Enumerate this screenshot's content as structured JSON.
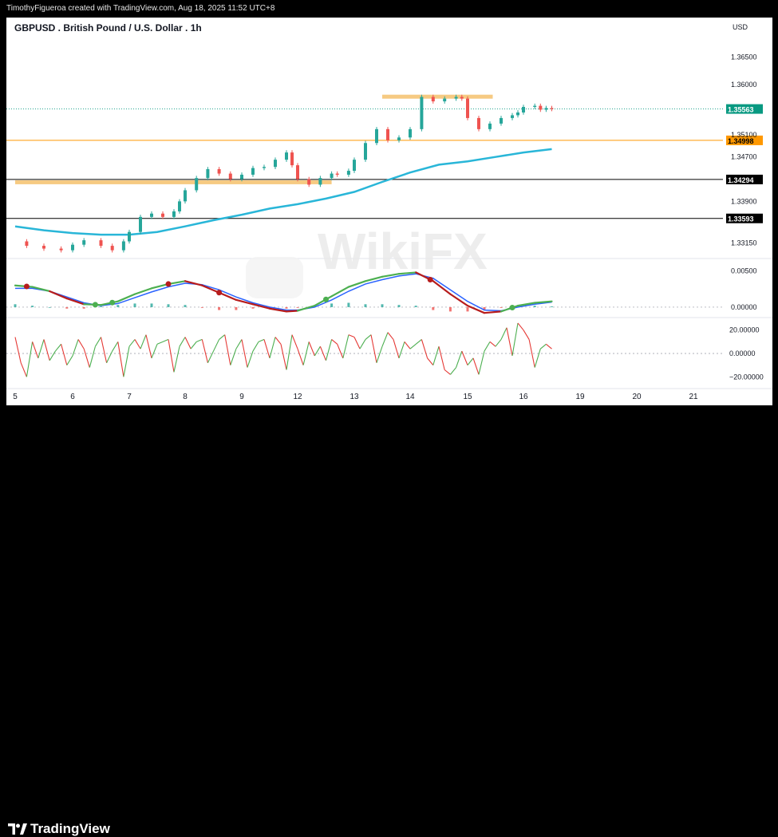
{
  "header": {
    "attribution": "TimothyFigueroa created with TradingView.com, Aug 18, 2025 11:52 UTC+8"
  },
  "footer": {
    "brand": "TradingView"
  },
  "watermark": {
    "text": "WikiFX"
  },
  "colors": {
    "up": "#26a69a",
    "down": "#ef5350",
    "ema": "#29b6d8",
    "zone": "#f5c16c",
    "macd_fast": "#4caf50",
    "macd_slow": "#2962ff",
    "macd_signal_down": "#b71c1c",
    "osc_up": "#4caf50",
    "osc_down": "#e53935",
    "last_price": "#089981",
    "level_orange": "#ff9800",
    "level_black": "#000000"
  },
  "chart_data": {
    "type": "candlestick",
    "title": "GBPUSD . British Pound / U.S. Dollar . 1h",
    "currency": "USD",
    "x_ticks": [
      "5",
      "6",
      "7",
      "8",
      "9",
      "12",
      "13",
      "14",
      "15",
      "16",
      "19",
      "20",
      "21"
    ],
    "y_ticks": [
      "1.36500",
      "1.36000",
      "1.35100",
      "1.34700",
      "1.33900",
      "1.33150"
    ],
    "ylim": [
      1.329,
      1.3695
    ],
    "price_series": {
      "name": "GBPUSD 1h close (approx.)",
      "x": [
        5.0,
        5.2,
        5.5,
        5.8,
        6.0,
        6.2,
        6.5,
        6.7,
        6.9,
        7.0,
        7.2,
        7.4,
        7.6,
        7.8,
        7.9,
        8.0,
        8.2,
        8.4,
        8.6,
        8.8,
        9.0,
        9.2,
        9.4,
        9.6,
        9.8,
        9.9,
        12.0,
        12.2,
        12.4,
        12.6,
        12.7,
        12.9,
        13.0,
        13.2,
        13.4,
        13.6,
        13.8,
        14.0,
        14.2,
        14.4,
        14.6,
        14.8,
        14.9,
        15.0,
        15.2,
        15.4,
        15.6,
        15.8,
        15.9,
        16.0,
        16.2,
        16.3,
        16.4,
        16.5
      ],
      "close": [
        1.3318,
        1.331,
        1.3305,
        1.3302,
        1.3312,
        1.332,
        1.331,
        1.3302,
        1.3318,
        1.3335,
        1.3362,
        1.3368,
        1.3362,
        1.3372,
        1.339,
        1.341,
        1.3432,
        1.3448,
        1.344,
        1.343,
        1.3438,
        1.345,
        1.3452,
        1.3465,
        1.3478,
        1.3455,
        1.343,
        1.342,
        1.3432,
        1.344,
        1.3438,
        1.3445,
        1.3465,
        1.3495,
        1.352,
        1.35,
        1.3505,
        1.352,
        1.3578,
        1.357,
        1.3575,
        1.3578,
        1.3575,
        1.354,
        1.352,
        1.353,
        1.354,
        1.3545,
        1.355,
        1.356,
        1.3562,
        1.3555,
        1.3558,
        1.35563
      ]
    },
    "ema_series": {
      "x": [
        5.0,
        5.5,
        6.0,
        6.5,
        7.0,
        7.5,
        8.0,
        8.5,
        9.0,
        9.5,
        12.0,
        12.5,
        13.0,
        13.5,
        14.0,
        14.5,
        15.0,
        15.5,
        16.0,
        16.5
      ],
      "y": [
        1.3345,
        1.3338,
        1.3333,
        1.333,
        1.333,
        1.3335,
        1.3345,
        1.3356,
        1.3366,
        1.3377,
        1.3385,
        1.3395,
        1.3407,
        1.3425,
        1.3442,
        1.3456,
        1.3462,
        1.347,
        1.3478,
        1.3484
      ]
    },
    "horizontal_levels": [
      {
        "label": "1.34998",
        "value": 1.34998,
        "color": "#ff9800"
      },
      {
        "label": "1.34294",
        "value": 1.34294,
        "color": "#000000"
      },
      {
        "label": "1.33593",
        "value": 1.33593,
        "color": "#000000"
      }
    ],
    "zones": [
      {
        "x0": 13.5,
        "x1": 15.45,
        "y0": 1.3575,
        "y1": 1.3582
      },
      {
        "x0": 5.0,
        "x1": 12.6,
        "y0": 1.3422,
        "y1": 1.3428
      }
    ],
    "last_price": {
      "label": "1.35563",
      "value": 1.35563
    },
    "macd": {
      "y_ticks": [
        "0.00500",
        "0.00000"
      ],
      "ylim": [
        -0.001,
        0.0065
      ],
      "x": [
        5.0,
        5.3,
        5.6,
        5.9,
        6.2,
        6.5,
        6.8,
        7.1,
        7.4,
        7.7,
        8.0,
        8.3,
        8.6,
        8.9,
        9.2,
        9.5,
        9.8,
        12.0,
        12.3,
        12.6,
        12.9,
        13.2,
        13.5,
        13.8,
        14.1,
        14.4,
        14.7,
        15.0,
        15.3,
        15.6,
        15.9,
        16.2,
        16.5
      ],
      "fast": [
        0.003,
        0.0028,
        0.0022,
        0.0012,
        0.0004,
        0.0003,
        0.0008,
        0.0018,
        0.0026,
        0.0032,
        0.0036,
        0.003,
        0.002,
        0.001,
        0.0004,
        -0.0002,
        -0.0006,
        -0.0005,
        0.0002,
        0.0015,
        0.0028,
        0.0036,
        0.0042,
        0.0046,
        0.0048,
        0.0036,
        0.0018,
        0.0002,
        -0.0008,
        -0.0006,
        0.0002,
        0.0006,
        0.0008
      ],
      "slow": [
        0.0026,
        0.0026,
        0.0022,
        0.0014,
        0.0006,
        0.0002,
        0.0005,
        0.0013,
        0.0021,
        0.0028,
        0.0033,
        0.0031,
        0.0024,
        0.0014,
        0.0006,
        0.0,
        -0.0004,
        -0.0004,
        0.0,
        0.001,
        0.0022,
        0.0032,
        0.0038,
        0.0043,
        0.0046,
        0.004,
        0.0024,
        0.0008,
        -0.0004,
        -0.0005,
        0.0,
        0.0004,
        0.0007
      ],
      "histogram": [
        0.0004,
        0.0002,
        0.0,
        -0.0002,
        -0.0002,
        0.0001,
        0.0003,
        0.0005,
        0.0005,
        0.0004,
        0.0003,
        -0.0001,
        -0.0004,
        -0.0004,
        -0.0002,
        -0.0002,
        -0.0002,
        -0.0001,
        0.0002,
        0.0005,
        0.0006,
        0.0004,
        0.0004,
        0.0003,
        0.0002,
        -0.0004,
        -0.0006,
        -0.0006,
        -0.0004,
        -0.0001,
        0.0002,
        0.0002,
        0.0001
      ],
      "cross_points": [
        {
          "x": 5.2,
          "color": "#b71c1c"
        },
        {
          "x": 6.4,
          "color": "#4caf50"
        },
        {
          "x": 6.7,
          "color": "#4caf50"
        },
        {
          "x": 7.7,
          "color": "#b71c1c"
        },
        {
          "x": 8.6,
          "color": "#b71c1c"
        },
        {
          "x": 12.5,
          "color": "#4caf50"
        },
        {
          "x": 14.35,
          "color": "#b71c1c"
        },
        {
          "x": 15.8,
          "color": "#4caf50"
        }
      ]
    },
    "oscillator": {
      "y_ticks": [
        "20.00000",
        "0.00000",
        "−20.00000"
      ],
      "ylim": [
        -28,
        28
      ],
      "x": [
        5.0,
        5.1,
        5.2,
        5.3,
        5.4,
        5.5,
        5.6,
        5.7,
        5.8,
        5.9,
        6.0,
        6.1,
        6.2,
        6.3,
        6.4,
        6.5,
        6.6,
        6.7,
        6.8,
        6.9,
        7.0,
        7.1,
        7.2,
        7.3,
        7.4,
        7.5,
        7.6,
        7.7,
        7.8,
        7.9,
        8.0,
        8.1,
        8.2,
        8.3,
        8.4,
        8.5,
        8.6,
        8.7,
        8.8,
        8.9,
        9.0,
        9.1,
        9.2,
        9.3,
        9.4,
        9.5,
        9.6,
        9.7,
        9.8,
        9.9,
        12.0,
        12.1,
        12.2,
        12.3,
        12.4,
        12.5,
        12.6,
        12.7,
        12.8,
        12.9,
        13.0,
        13.1,
        13.2,
        13.3,
        13.4,
        13.5,
        13.6,
        13.7,
        13.8,
        13.9,
        14.0,
        14.1,
        14.2,
        14.3,
        14.4,
        14.5,
        14.6,
        14.7,
        14.8,
        14.9,
        15.0,
        15.1,
        15.2,
        15.3,
        15.4,
        15.5,
        15.6,
        15.7,
        15.8,
        15.9,
        16.0,
        16.1,
        16.2,
        16.3,
        16.4,
        16.5
      ],
      "y": [
        14,
        -8,
        -20,
        10,
        -4,
        12,
        -6,
        2,
        8,
        -10,
        -2,
        12,
        4,
        -12,
        6,
        14,
        -8,
        2,
        10,
        -20,
        6,
        12,
        4,
        16,
        -4,
        8,
        10,
        12,
        -16,
        6,
        14,
        4,
        10,
        12,
        -8,
        2,
        12,
        16,
        -10,
        4,
        12,
        -12,
        2,
        10,
        12,
        -4,
        14,
        8,
        -14,
        16,
        4,
        -10,
        10,
        -2,
        6,
        -6,
        12,
        8,
        -4,
        16,
        14,
        4,
        12,
        16,
        -8,
        6,
        18,
        12,
        -4,
        10,
        4,
        8,
        12,
        -4,
        -10,
        6,
        -14,
        -18,
        -12,
        2,
        -10,
        -4,
        -18,
        2,
        10,
        6,
        12,
        22,
        -2,
        26,
        20,
        12,
        -12,
        4,
        8,
        4
      ]
    }
  }
}
